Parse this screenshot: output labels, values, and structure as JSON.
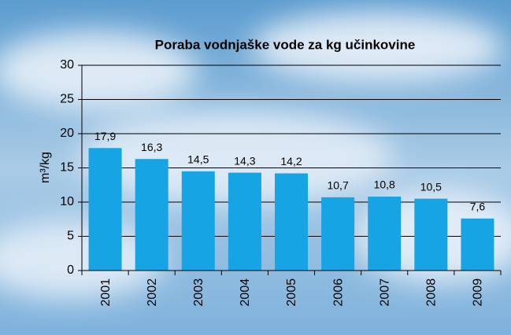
{
  "chart_data": {
    "type": "bar",
    "title": "Poraba vodnjaške vode za kg učinkovine",
    "y_label": "m³/kg",
    "categories": [
      "2001",
      "2002",
      "2003",
      "2004",
      "2005",
      "2006",
      "2007",
      "2008",
      "2009"
    ],
    "values": [
      17.9,
      16.3,
      14.5,
      14.3,
      14.2,
      10.7,
      10.8,
      10.5,
      7.6
    ],
    "value_labels": [
      "17,9",
      "16,3",
      "14,5",
      "14,3",
      "14,2",
      "10,7",
      "10,8",
      "10,5",
      "7,6"
    ],
    "color": "#16a4e4",
    "ylim": [
      0,
      30
    ],
    "yticks": [
      0,
      5,
      10,
      15,
      20,
      25,
      30
    ],
    "grid": true
  }
}
